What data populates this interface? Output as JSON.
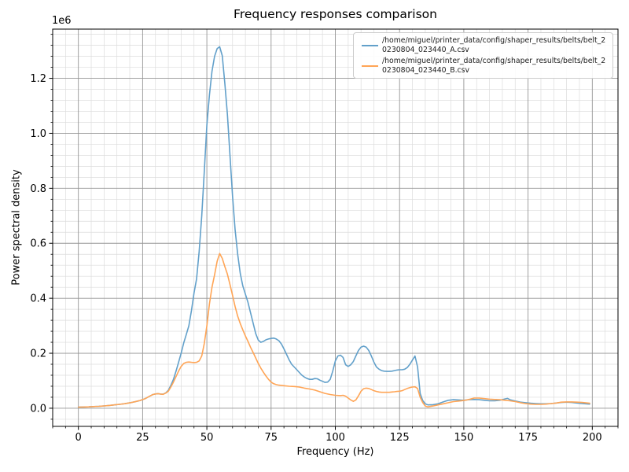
{
  "figure": {
    "title": "Frequency responses comparison",
    "xlabel": "Frequency (Hz)",
    "ylabel": "Power spectral density",
    "y_offset_text": "1e6",
    "background_color": "#ffffff"
  },
  "legend": {
    "position": "upper right",
    "entries": [
      {
        "line1": "/home/miguel/printer_data/config/shaper_results/belts/belt_2",
        "line2": "0230804_023440_A.csv",
        "color": "#62a0ca"
      },
      {
        "line1": "/home/miguel/printer_data/config/shaper_results/belts/belt_2",
        "line2": "0230804_023440_B.csv",
        "color": "#ffa556"
      }
    ]
  },
  "chart_data": {
    "type": "line",
    "title": "Frequency responses comparison",
    "xlabel": "Frequency (Hz)",
    "ylabel": "Power spectral density",
    "y_scale_offset": "1e6",
    "xlim": [
      -10,
      210
    ],
    "ylim": [
      -66000,
      1379000
    ],
    "x_ticks": [
      0,
      25,
      50,
      75,
      100,
      125,
      150,
      175,
      200
    ],
    "x_tick_labels": [
      "0",
      "25",
      "50",
      "75",
      "100",
      "125",
      "150",
      "175",
      "200"
    ],
    "y_ticks": [
      0,
      200000,
      400000,
      600000,
      800000,
      1000000,
      1200000
    ],
    "y_tick_labels": [
      "0.0",
      "0.2",
      "0.4",
      "0.6",
      "0.8",
      "1.0",
      "1.2"
    ],
    "x_minor_step": 5,
    "y_minor_step": 40000,
    "grid": "both",
    "grid_major_color": "#959595",
    "grid_minor_color": "#dcdcdc",
    "legend_position": "upper right",
    "series": [
      {
        "name": "/home/miguel/printer_data/config/shaper_results/belts/belt_20230804_023440_A.csv",
        "color": "#62a0ca",
        "peak": {
          "frequency_hz": 55.3,
          "psd": 1315000
        },
        "points": [
          [
            0,
            4000
          ],
          [
            2,
            4500
          ],
          [
            4,
            5000
          ],
          [
            6,
            6000
          ],
          [
            8,
            7000
          ],
          [
            10,
            8500
          ],
          [
            12,
            10000
          ],
          [
            14,
            12000
          ],
          [
            16,
            14000
          ],
          [
            18,
            16500
          ],
          [
            20,
            19500
          ],
          [
            22,
            23500
          ],
          [
            24,
            28000
          ],
          [
            26,
            35000
          ],
          [
            28,
            45000
          ],
          [
            29,
            50000
          ],
          [
            30,
            52000
          ],
          [
            31,
            53000
          ],
          [
            32,
            51500
          ],
          [
            33,
            51000
          ],
          [
            34,
            56000
          ],
          [
            35,
            65000
          ],
          [
            36,
            83000
          ],
          [
            37,
            105000
          ],
          [
            38,
            135000
          ],
          [
            39,
            167000
          ],
          [
            40,
            200000
          ],
          [
            41,
            238000
          ],
          [
            42,
            268000
          ],
          [
            43,
            300000
          ],
          [
            44,
            355000
          ],
          [
            45,
            420000
          ],
          [
            46,
            470000
          ],
          [
            47,
            570000
          ],
          [
            48,
            700000
          ],
          [
            49,
            860000
          ],
          [
            50,
            1030000
          ],
          [
            51,
            1140000
          ],
          [
            52,
            1225000
          ],
          [
            53,
            1280000
          ],
          [
            54,
            1308000
          ],
          [
            55,
            1315000
          ],
          [
            56,
            1282000
          ],
          [
            57,
            1180000
          ],
          [
            58,
            1070000
          ],
          [
            59,
            920000
          ],
          [
            60,
            770000
          ],
          [
            61,
            650000
          ],
          [
            62,
            560000
          ],
          [
            63,
            490000
          ],
          [
            64,
            445000
          ],
          [
            65,
            415000
          ],
          [
            66,
            385000
          ],
          [
            67,
            348000
          ],
          [
            68,
            310000
          ],
          [
            69,
            272000
          ],
          [
            70,
            248000
          ],
          [
            71,
            240000
          ],
          [
            72,
            243000
          ],
          [
            73,
            249000
          ],
          [
            74,
            252000
          ],
          [
            75,
            254000
          ],
          [
            76,
            255000
          ],
          [
            77,
            252000
          ],
          [
            78,
            246000
          ],
          [
            79,
            234000
          ],
          [
            80,
            216000
          ],
          [
            81,
            196000
          ],
          [
            82,
            176000
          ],
          [
            83,
            160000
          ],
          [
            84,
            150000
          ],
          [
            85,
            140000
          ],
          [
            86,
            130000
          ],
          [
            87,
            120000
          ],
          [
            88,
            113000
          ],
          [
            89,
            108000
          ],
          [
            90,
            105000
          ],
          [
            91,
            105000
          ],
          [
            92,
            108000
          ],
          [
            93,
            107000
          ],
          [
            94,
            102000
          ],
          [
            95,
            98000
          ],
          [
            96,
            94000
          ],
          [
            97,
            95000
          ],
          [
            98,
            105000
          ],
          [
            99,
            135000
          ],
          [
            100,
            172000
          ],
          [
            101,
            190000
          ],
          [
            102,
            193000
          ],
          [
            103,
            185000
          ],
          [
            104,
            158000
          ],
          [
            105,
            152000
          ],
          [
            106,
            158000
          ],
          [
            107,
            170000
          ],
          [
            108,
            190000
          ],
          [
            109,
            210000
          ],
          [
            110,
            222000
          ],
          [
            111,
            226000
          ],
          [
            112,
            222000
          ],
          [
            113,
            210000
          ],
          [
            114,
            190000
          ],
          [
            115,
            168000
          ],
          [
            116,
            150000
          ],
          [
            117,
            142000
          ],
          [
            118,
            137000
          ],
          [
            119,
            135000
          ],
          [
            120,
            134000
          ],
          [
            121,
            134000
          ],
          [
            122,
            135000
          ],
          [
            123,
            137000
          ],
          [
            124,
            139000
          ],
          [
            125,
            140000
          ],
          [
            126,
            140000
          ],
          [
            127,
            142000
          ],
          [
            128,
            148000
          ],
          [
            129,
            160000
          ],
          [
            130,
            175000
          ],
          [
            131,
            190000
          ],
          [
            132,
            150000
          ],
          [
            133,
            54000
          ],
          [
            134,
            28000
          ],
          [
            135,
            16000
          ],
          [
            136,
            12000
          ],
          [
            138,
            13000
          ],
          [
            140,
            16000
          ],
          [
            142,
            23000
          ],
          [
            144,
            29000
          ],
          [
            146,
            31000
          ],
          [
            148,
            30000
          ],
          [
            150,
            29000
          ],
          [
            152,
            31000
          ],
          [
            154,
            32000
          ],
          [
            156,
            31000
          ],
          [
            158,
            29000
          ],
          [
            160,
            27000
          ],
          [
            162,
            27000
          ],
          [
            164,
            29000
          ],
          [
            166,
            34000
          ],
          [
            167,
            36000
          ],
          [
            168,
            31000
          ],
          [
            170,
            26000
          ],
          [
            172,
            22000
          ],
          [
            174,
            20000
          ],
          [
            176,
            18000
          ],
          [
            178,
            17000
          ],
          [
            180,
            16000
          ],
          [
            182,
            16000
          ],
          [
            184,
            17000
          ],
          [
            186,
            19000
          ],
          [
            188,
            21000
          ],
          [
            190,
            22000
          ],
          [
            192,
            21000
          ],
          [
            194,
            19000
          ],
          [
            196,
            17000
          ],
          [
            199,
            15000
          ]
        ]
      },
      {
        "name": "/home/miguel/printer_data/config/shaper_results/belts/belt_20230804_023440_B.csv",
        "color": "#ffa556",
        "peak": {
          "frequency_hz": 55.4,
          "psd": 563000
        },
        "points": [
          [
            0,
            4000
          ],
          [
            2,
            4500
          ],
          [
            4,
            5000
          ],
          [
            6,
            6000
          ],
          [
            8,
            7000
          ],
          [
            10,
            8500
          ],
          [
            12,
            10000
          ],
          [
            14,
            12000
          ],
          [
            16,
            14000
          ],
          [
            18,
            16500
          ],
          [
            20,
            19500
          ],
          [
            22,
            23500
          ],
          [
            24,
            28000
          ],
          [
            26,
            35000
          ],
          [
            28,
            45000
          ],
          [
            29,
            50000
          ],
          [
            30,
            52000
          ],
          [
            31,
            53000
          ],
          [
            32,
            51500
          ],
          [
            33,
            50500
          ],
          [
            34,
            55000
          ],
          [
            35,
            62000
          ],
          [
            36,
            77000
          ],
          [
            37,
            95000
          ],
          [
            38,
            115000
          ],
          [
            39,
            135000
          ],
          [
            40,
            152000
          ],
          [
            41,
            163000
          ],
          [
            42,
            167000
          ],
          [
            43,
            168000
          ],
          [
            44,
            167000
          ],
          [
            45,
            166000
          ],
          [
            46,
            167000
          ],
          [
            47,
            172000
          ],
          [
            48,
            190000
          ],
          [
            49,
            235000
          ],
          [
            50,
            300000
          ],
          [
            51,
            380000
          ],
          [
            52,
            440000
          ],
          [
            53,
            485000
          ],
          [
            54,
            535000
          ],
          [
            55,
            563000
          ],
          [
            56,
            545000
          ],
          [
            57,
            515000
          ],
          [
            58,
            488000
          ],
          [
            59,
            450000
          ],
          [
            60,
            410000
          ],
          [
            61,
            370000
          ],
          [
            62,
            335000
          ],
          [
            63,
            308000
          ],
          [
            64,
            285000
          ],
          [
            65,
            263000
          ],
          [
            66,
            243000
          ],
          [
            67,
            222000
          ],
          [
            68,
            203000
          ],
          [
            69,
            183000
          ],
          [
            70,
            163000
          ],
          [
            71,
            146000
          ],
          [
            72,
            131000
          ],
          [
            73,
            117000
          ],
          [
            74,
            105000
          ],
          [
            75,
            95000
          ],
          [
            76,
            89000
          ],
          [
            77,
            86000
          ],
          [
            78,
            84000
          ],
          [
            80,
            82000
          ],
          [
            82,
            80000
          ],
          [
            84,
            79000
          ],
          [
            86,
            77000
          ],
          [
            88,
            73000
          ],
          [
            90,
            70000
          ],
          [
            92,
            66000
          ],
          [
            94,
            60000
          ],
          [
            96,
            54000
          ],
          [
            98,
            50000
          ],
          [
            100,
            47000
          ],
          [
            102,
            46000
          ],
          [
            103,
            47000
          ],
          [
            104,
            44000
          ],
          [
            105,
            37000
          ],
          [
            106,
            30000
          ],
          [
            107,
            25000
          ],
          [
            108,
            30000
          ],
          [
            109,
            45000
          ],
          [
            110,
            62000
          ],
          [
            111,
            71000
          ],
          [
            112,
            73000
          ],
          [
            113,
            72000
          ],
          [
            114,
            68000
          ],
          [
            115,
            64000
          ],
          [
            116,
            61000
          ],
          [
            117,
            59000
          ],
          [
            118,
            58000
          ],
          [
            119,
            58000
          ],
          [
            120,
            58000
          ],
          [
            121,
            58000
          ],
          [
            122,
            59000
          ],
          [
            123,
            60000
          ],
          [
            124,
            61000
          ],
          [
            125,
            62000
          ],
          [
            126,
            64000
          ],
          [
            127,
            68000
          ],
          [
            128,
            72000
          ],
          [
            129,
            75000
          ],
          [
            130,
            77000
          ],
          [
            131,
            78000
          ],
          [
            132,
            72000
          ],
          [
            133,
            40000
          ],
          [
            134,
            21000
          ],
          [
            135,
            8000
          ],
          [
            136,
            5000
          ],
          [
            138,
            8000
          ],
          [
            140,
            12000
          ],
          [
            142,
            16000
          ],
          [
            144,
            20000
          ],
          [
            146,
            24000
          ],
          [
            148,
            26000
          ],
          [
            150,
            28000
          ],
          [
            152,
            32000
          ],
          [
            154,
            37000
          ],
          [
            156,
            37000
          ],
          [
            158,
            35000
          ],
          [
            160,
            33000
          ],
          [
            162,
            32000
          ],
          [
            164,
            31000
          ],
          [
            166,
            29000
          ],
          [
            168,
            27000
          ],
          [
            170,
            24000
          ],
          [
            172,
            20000
          ],
          [
            174,
            17000
          ],
          [
            176,
            15000
          ],
          [
            178,
            14000
          ],
          [
            180,
            14000
          ],
          [
            182,
            15000
          ],
          [
            184,
            17000
          ],
          [
            186,
            19000
          ],
          [
            188,
            22000
          ],
          [
            190,
            23000
          ],
          [
            192,
            23000
          ],
          [
            194,
            22000
          ],
          [
            196,
            21000
          ],
          [
            199,
            18000
          ]
        ]
      }
    ]
  }
}
